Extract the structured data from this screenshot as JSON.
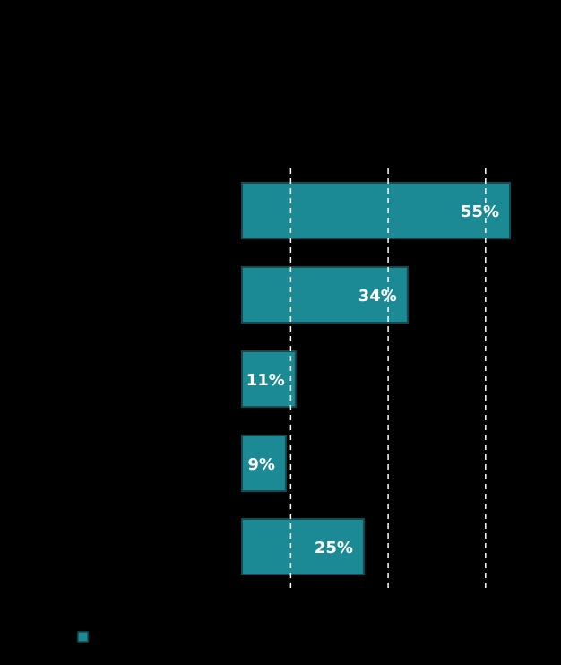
{
  "chart_data": {
    "type": "bar",
    "orientation": "horizontal",
    "categories": [
      "",
      "",
      "",
      "",
      ""
    ],
    "series": [
      {
        "name": "",
        "values": [
          55,
          34,
          11,
          9,
          25
        ],
        "color": "#1b8a94"
      }
    ],
    "data_labels": [
      "55%",
      "34%",
      "11%",
      "9%",
      "25%"
    ],
    "xlim": [
      0,
      55
    ],
    "gridlines": [
      10,
      30,
      50
    ],
    "grid": true,
    "grid_style": "dashed",
    "legend_position": "bottom-left",
    "title": "",
    "xlabel": "",
    "ylabel": "",
    "colors": {
      "background": "#000000",
      "bar": "#1b8a94",
      "bar_border": "#0e4f55",
      "grid": "#ffffff",
      "label": "#ffffff"
    }
  }
}
